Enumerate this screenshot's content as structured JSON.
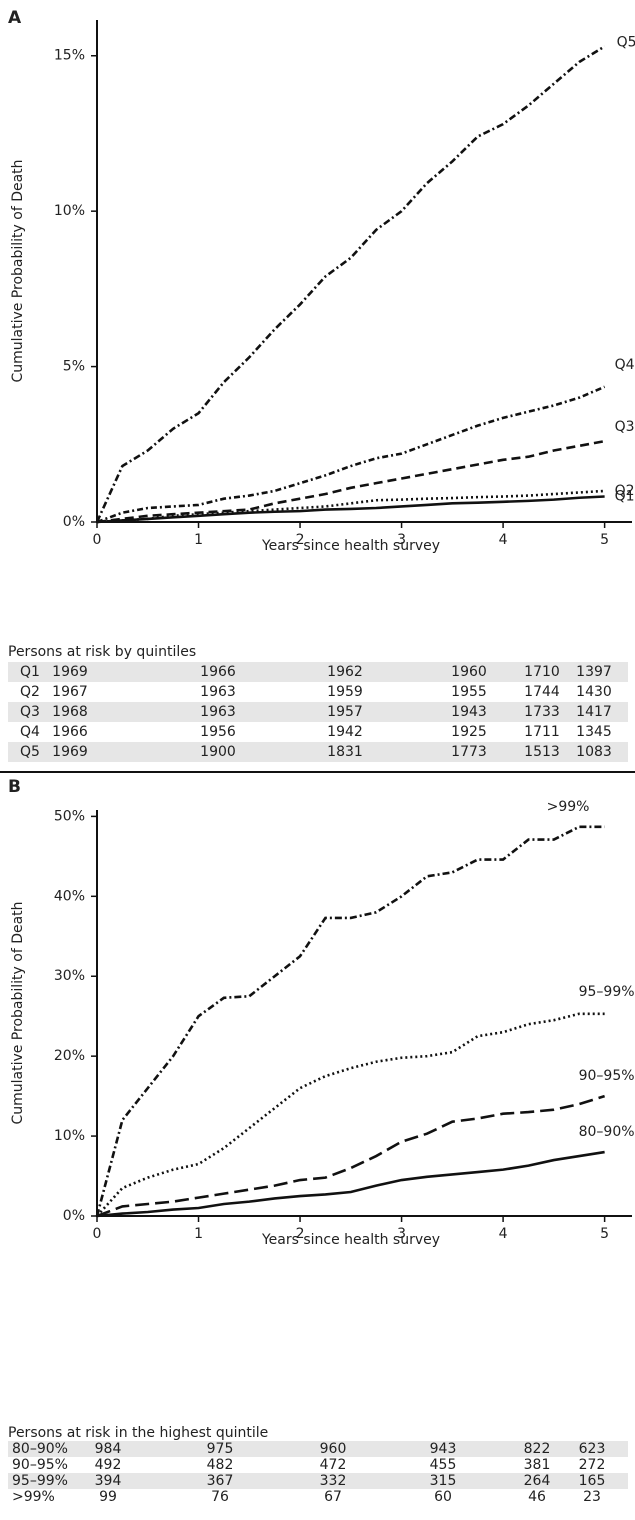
{
  "chart_data": [
    {
      "type": "line",
      "panel": "A",
      "xlabel": "Years since health survey",
      "ylabel": "Cumulative Probability of Death",
      "x": [
        0,
        0.25,
        0.5,
        0.75,
        1,
        1.25,
        1.5,
        1.75,
        2,
        2.25,
        2.5,
        2.75,
        3,
        3.25,
        3.5,
        3.75,
        4,
        4.25,
        4.5,
        4.75,
        5
      ],
      "xlim": [
        0,
        5.25
      ],
      "xticks": [
        0,
        1,
        2,
        3,
        4,
        5
      ],
      "ylim": [
        0,
        16.15
      ],
      "yticks": [
        {
          "value": 0,
          "label": "0%"
        },
        {
          "value": 5,
          "label": "5%"
        },
        {
          "value": 10,
          "label": "10%"
        },
        {
          "value": 15,
          "label": "15%"
        }
      ],
      "series": [
        {
          "name": "Q1",
          "color": "#111111",
          "dash": "none",
          "values": [
            0,
            0.05,
            0.1,
            0.15,
            0.2,
            0.25,
            0.3,
            0.33,
            0.35,
            0.4,
            0.42,
            0.45,
            0.5,
            0.55,
            0.6,
            0.62,
            0.65,
            0.68,
            0.72,
            0.78,
            0.82
          ]
        },
        {
          "name": "Q2",
          "color": "#111111",
          "dash": "2,3",
          "values": [
            0,
            0.05,
            0.1,
            0.2,
            0.25,
            0.3,
            0.35,
            0.4,
            0.45,
            0.5,
            0.6,
            0.7,
            0.72,
            0.75,
            0.77,
            0.8,
            0.82,
            0.85,
            0.9,
            0.95,
            1.0
          ]
        },
        {
          "name": "Q3",
          "color": "#111111",
          "dash": "9,5",
          "values": [
            0,
            0.1,
            0.2,
            0.25,
            0.3,
            0.35,
            0.4,
            0.6,
            0.75,
            0.9,
            1.1,
            1.25,
            1.4,
            1.55,
            1.7,
            1.85,
            2.0,
            2.1,
            2.3,
            2.45,
            2.6
          ]
        },
        {
          "name": "Q4",
          "color": "#111111",
          "dash": "6,3,2,3",
          "values": [
            0,
            0.3,
            0.45,
            0.5,
            0.55,
            0.75,
            0.85,
            1.0,
            1.25,
            1.5,
            1.8,
            2.05,
            2.2,
            2.5,
            2.8,
            3.1,
            3.35,
            3.55,
            3.75,
            4.0,
            4.35
          ]
        },
        {
          "name": "Q5",
          "color": "#111111",
          "dash": "7,3,2,3",
          "values": [
            0,
            1.8,
            2.3,
            3.0,
            3.5,
            4.5,
            5.3,
            6.2,
            7.0,
            7.9,
            8.5,
            9.4,
            10.0,
            10.9,
            11.6,
            12.4,
            12.8,
            13.4,
            14.1,
            14.8,
            15.3
          ]
        }
      ],
      "risk_table": {
        "title": "Persons at risk by quintiles",
        "rows": [
          {
            "label": "Q1",
            "values": [
              "1969",
              "1966",
              "1962",
              "1960",
              "1710",
              "1397"
            ]
          },
          {
            "label": "Q2",
            "values": [
              "1967",
              "1963",
              "1959",
              "1955",
              "1744",
              "1430"
            ]
          },
          {
            "label": "Q3",
            "values": [
              "1968",
              "1963",
              "1957",
              "1943",
              "1733",
              "1417"
            ]
          },
          {
            "label": "Q4",
            "values": [
              "1966",
              "1956",
              "1942",
              "1925",
              "1711",
              "1345"
            ]
          },
          {
            "label": "Q5",
            "values": [
              "1969",
              "1900",
              "1831",
              "1773",
              "1513",
              "1083"
            ]
          }
        ]
      }
    },
    {
      "type": "line",
      "panel": "B",
      "xlabel": "Years since health survey",
      "ylabel": "Cumulative Probability of Death",
      "x": [
        0,
        0.25,
        0.5,
        0.75,
        1,
        1.25,
        1.5,
        1.75,
        2,
        2.25,
        2.5,
        2.75,
        3,
        3.25,
        3.5,
        3.75,
        4,
        4.25,
        4.5,
        4.75,
        5
      ],
      "xlim": [
        0,
        5.25
      ],
      "xticks": [
        0,
        1,
        2,
        3,
        4,
        5
      ],
      "ylim": [
        0,
        50.8
      ],
      "yticks": [
        {
          "value": 0,
          "label": "0%"
        },
        {
          "value": 10,
          "label": "10%"
        },
        {
          "value": 20,
          "label": "20%"
        },
        {
          "value": 30,
          "label": "30%"
        },
        {
          "value": 40,
          "label": "40%"
        },
        {
          "value": 50,
          "label": "50%"
        }
      ],
      "series": [
        {
          "name": "80–90%",
          "color": "#111111",
          "dash": "none",
          "values": [
            0,
            0.3,
            0.5,
            0.8,
            1.0,
            1.5,
            1.8,
            2.2,
            2.5,
            2.7,
            3.0,
            3.8,
            4.5,
            4.9,
            5.2,
            5.5,
            5.8,
            6.3,
            7.0,
            7.5,
            8.0
          ]
        },
        {
          "name": "90–95%",
          "color": "#111111",
          "dash": "14,6",
          "values": [
            0,
            1.2,
            1.5,
            1.8,
            2.3,
            2.8,
            3.3,
            3.8,
            4.5,
            4.8,
            6.0,
            7.5,
            9.3,
            10.3,
            11.8,
            12.2,
            12.8,
            13.0,
            13.3,
            14.0,
            15.0
          ]
        },
        {
          "name": "95–99%",
          "color": "#111111",
          "dash": "2,3",
          "values": [
            0,
            3.5,
            4.8,
            5.8,
            6.5,
            8.5,
            11,
            13.5,
            16,
            17.5,
            18.5,
            19.3,
            19.8,
            20,
            20.5,
            22.5,
            23,
            24,
            24.5,
            25.3,
            25.3
          ]
        },
        {
          "name": ">99%",
          "color": "#111111",
          "dash": "7,3,2,3",
          "values": [
            0,
            12,
            16,
            20,
            25,
            27.3,
            27.5,
            30,
            32.5,
            37.3,
            37.3,
            38,
            40,
            42.5,
            43,
            44.6,
            44.6,
            47.1,
            47.1,
            48.7,
            48.7
          ]
        }
      ],
      "risk_table": {
        "title": "Persons at risk in the highest quintile",
        "rows": [
          {
            "label": "80–90%",
            "values": [
              "984",
              "975",
              "960",
              "943",
              "822",
              "623"
            ]
          },
          {
            "label": "90–95%",
            "values": [
              "492",
              "482",
              "472",
              "455",
              "381",
              "272"
            ]
          },
          {
            "label": "95–99%",
            "values": [
              "394",
              "367",
              "332",
              "315",
              "264",
              "165"
            ]
          },
          {
            "label": ">99%",
            "values": [
              "99",
              "76",
              "67",
              "60",
              "46",
              "23"
            ]
          }
        ]
      }
    }
  ]
}
